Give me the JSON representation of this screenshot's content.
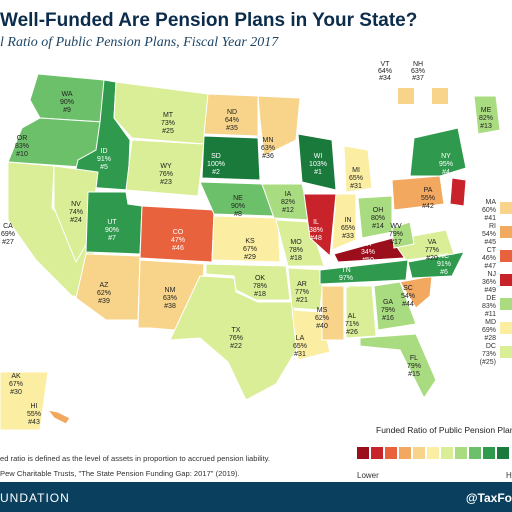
{
  "title": "Well-Funded Are Pension Plans in Your State?",
  "subtitle": "l Ratio of Public Pension Plans, Fiscal Year 2017",
  "legend": {
    "title": "Funded Ratio of Public Pension Plans",
    "low_label": "Lower",
    "high_label": "H",
    "colors": [
      "#9b0f1c",
      "#c8222a",
      "#e8623e",
      "#f3a860",
      "#f8d48a",
      "#fbeea2",
      "#d9ee96",
      "#a9dc80",
      "#6dc06a",
      "#2f9a4e",
      "#1a7a3c"
    ]
  },
  "footnote": "ed ratio is defined as the level of assets in proportion to accrued pension liability.",
  "source": "Pew Charitable Trusts, \"The State Pension Funding Gap: 2017\" (2019).",
  "footer": {
    "left": "UNDATION",
    "right": "@TaxFo"
  },
  "states": {
    "WA": {
      "name": "WA",
      "pct": "90%",
      "rank": "#9",
      "color": "#6dc06a"
    },
    "OR": {
      "name": "OR",
      "pct": "83%",
      "rank": "#10",
      "color": "#6dc06a"
    },
    "CA": {
      "name": "CA",
      "pct": "69%",
      "rank": "#27",
      "color": "#d9ee96"
    },
    "ID": {
      "name": "ID",
      "pct": "91%",
      "rank": "#5",
      "color": "#2f9a4e"
    },
    "NV": {
      "name": "NV",
      "pct": "74%",
      "rank": "#24",
      "color": "#d9ee96"
    },
    "MT": {
      "name": "MT",
      "pct": "73%",
      "rank": "#25",
      "color": "#d9ee96"
    },
    "WY": {
      "name": "WY",
      "pct": "76%",
      "rank": "#23",
      "color": "#d9ee96"
    },
    "UT": {
      "name": "UT",
      "pct": "90%",
      "rank": "#7",
      "color": "#2f9a4e"
    },
    "AZ": {
      "name": "AZ",
      "pct": "62%",
      "rank": "#39",
      "color": "#f8d48a"
    },
    "CO": {
      "name": "CO",
      "pct": "47%",
      "rank": "#46",
      "color": "#e8623e"
    },
    "NM": {
      "name": "NM",
      "pct": "63%",
      "rank": "#38",
      "color": "#f8d48a"
    },
    "ND": {
      "name": "ND",
      "pct": "64%",
      "rank": "#35",
      "color": "#f8d48a"
    },
    "SD": {
      "name": "SD",
      "pct": "100%",
      "rank": "#2",
      "color": "#1a7a3c"
    },
    "NE": {
      "name": "NE",
      "pct": "90%",
      "rank": "#8",
      "color": "#6dc06a"
    },
    "KS": {
      "name": "KS",
      "pct": "67%",
      "rank": "#29",
      "color": "#fbeea2"
    },
    "OK": {
      "name": "OK",
      "pct": "78%",
      "rank": "#18",
      "color": "#d9ee96"
    },
    "TX": {
      "name": "TX",
      "pct": "76%",
      "rank": "#22",
      "color": "#d9ee96"
    },
    "MN": {
      "name": "MN",
      "pct": "63%",
      "rank": "#36",
      "color": "#f8d48a"
    },
    "IA": {
      "name": "IA",
      "pct": "82%",
      "rank": "#12",
      "color": "#a9dc80"
    },
    "MO": {
      "name": "MO",
      "pct": "78%",
      "rank": "#18",
      "color": "#d9ee96"
    },
    "AR": {
      "name": "AR",
      "pct": "77%",
      "rank": "#21",
      "color": "#d9ee96"
    },
    "LA": {
      "name": "LA",
      "pct": "65%",
      "rank": "#31",
      "color": "#fbeea2"
    },
    "WI": {
      "name": "WI",
      "pct": "103%",
      "rank": "#1",
      "color": "#1a7a3c"
    },
    "IL": {
      "name": "IL",
      "pct": "38%",
      "rank": "#48",
      "color": "#c8222a"
    },
    "MI": {
      "name": "MI",
      "pct": "65%",
      "rank": "#31",
      "color": "#fbeea2"
    },
    "IN": {
      "name": "IN",
      "pct": "65%",
      "rank": "#33",
      "color": "#fbeea2"
    },
    "OH": {
      "name": "OH",
      "pct": "80%",
      "rank": "#14",
      "color": "#a9dc80"
    },
    "KY": {
      "name": "KY",
      "pct": "34%",
      "rank": "#50",
      "color": "#9b0f1c"
    },
    "TN": {
      "name": "TN",
      "pct": "97%",
      "rank": "#3",
      "color": "#2f9a4e"
    },
    "MS": {
      "name": "MS",
      "pct": "62%",
      "rank": "#40",
      "color": "#f8d48a"
    },
    "AL": {
      "name": "AL",
      "pct": "71%",
      "rank": "#26",
      "color": "#d9ee96"
    },
    "GA": {
      "name": "GA",
      "pct": "79%",
      "rank": "#16",
      "color": "#a9dc80"
    },
    "FL": {
      "name": "FL",
      "pct": "79%",
      "rank": "#15",
      "color": "#a9dc80"
    },
    "SC": {
      "name": "SC",
      "pct": "54%",
      "rank": "#44",
      "color": "#f3a860"
    },
    "NC": {
      "name": "NC",
      "pct": "91%",
      "rank": "#6",
      "color": "#2f9a4e"
    },
    "VA": {
      "name": "VA",
      "pct": "77%",
      "rank": "#20",
      "color": "#d9ee96"
    },
    "WV": {
      "name": "WV",
      "pct": "79%",
      "rank": "#17",
      "color": "#a9dc80"
    },
    "PA": {
      "name": "PA",
      "pct": "55%",
      "rank": "#42",
      "color": "#f3a860"
    },
    "NY": {
      "name": "NY",
      "pct": "95%",
      "rank": "#4",
      "color": "#2f9a4e"
    },
    "ME": {
      "name": "ME",
      "pct": "82%",
      "rank": "#13",
      "color": "#a9dc80"
    },
    "NJ": {
      "name": "NJ",
      "pct": "36%",
      "rank": "#49",
      "color": "#c8222a"
    },
    "AK": {
      "name": "AK",
      "pct": "67%",
      "rank": "#30",
      "color": "#fbeea2"
    },
    "HI": {
      "name": "HI",
      "pct": "55%",
      "rank": "#43",
      "color": "#f3a860"
    }
  },
  "inset_states": {
    "VT": {
      "name": "VT",
      "pct": "64%",
      "rank": "#34",
      "color": "#f8d48a"
    },
    "NH": {
      "name": "NH",
      "pct": "63%",
      "rank": "#37",
      "color": "#f8d48a"
    }
  },
  "side_list": [
    {
      "name": "MA",
      "pct": "60%",
      "rank": "#41"
    },
    {
      "name": "RI",
      "pct": "54%",
      "rank": "#45"
    },
    {
      "name": "CT",
      "pct": "46%",
      "rank": "#47"
    },
    {
      "name": "NJ",
      "pct": "36%",
      "rank": "#49"
    },
    {
      "name": "DE",
      "pct": "83%",
      "rank": "#11"
    },
    {
      "name": "MD",
      "pct": "69%",
      "rank": "#28"
    },
    {
      "name": "DC",
      "pct": "73%",
      "rank": "(#25)"
    }
  ]
}
